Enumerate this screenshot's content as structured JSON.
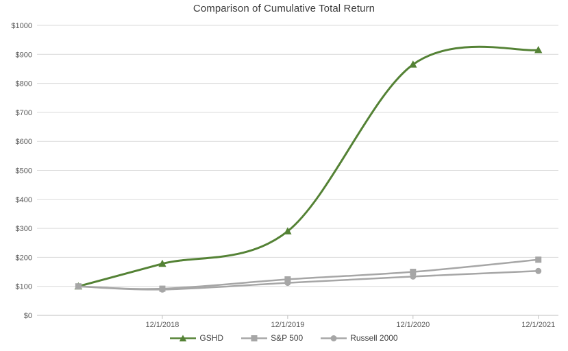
{
  "chart_data": {
    "type": "line",
    "title": "Comparison of Cumulative Total Return",
    "smooth": true,
    "grid": true,
    "legend_position": "bottom",
    "x_range": [
      0,
      4.16
    ],
    "y_range": [
      0,
      1000
    ],
    "x_ticks": [
      {
        "pos": 1,
        "label": "12/1/2018"
      },
      {
        "pos": 2,
        "label": "12/1/2019"
      },
      {
        "pos": 3,
        "label": "12/1/2020"
      },
      {
        "pos": 4,
        "label": "12/1/2021"
      }
    ],
    "y_ticks": [
      {
        "value": 0,
        "label": "$0"
      },
      {
        "value": 100,
        "label": "$100"
      },
      {
        "value": 200,
        "label": "$200"
      },
      {
        "value": 300,
        "label": "$300"
      },
      {
        "value": 400,
        "label": "$400"
      },
      {
        "value": 500,
        "label": "$500"
      },
      {
        "value": 600,
        "label": "$600"
      },
      {
        "value": 700,
        "label": "$700"
      },
      {
        "value": 800,
        "label": "$800"
      },
      {
        "value": 900,
        "label": "$900"
      },
      {
        "value": 1000,
        "label": "$1000"
      }
    ],
    "x": [
      0.33,
      1,
      2,
      3,
      4
    ],
    "series": [
      {
        "name": "GSHD",
        "color": "#548235",
        "marker": "triangle",
        "line_width": 3,
        "values": [
          100,
          178,
          290,
          865,
          915
        ]
      },
      {
        "name": "S&P 500",
        "color": "#a6a6a6",
        "marker": "square",
        "line_width": 2.5,
        "values": [
          100,
          92,
          124,
          150,
          192
        ]
      },
      {
        "name": "Russell 2000",
        "color": "#a6a6a6",
        "marker": "circle",
        "line_width": 2.5,
        "values": [
          100,
          89,
          112,
          134,
          153
        ]
      }
    ],
    "colors": {
      "gridline": "#d9d9d9",
      "axis": "#bfbfbf",
      "tick_label": "#595959",
      "title": "#3b3b3b",
      "legend_text": "#404040",
      "background": "#ffffff"
    }
  }
}
